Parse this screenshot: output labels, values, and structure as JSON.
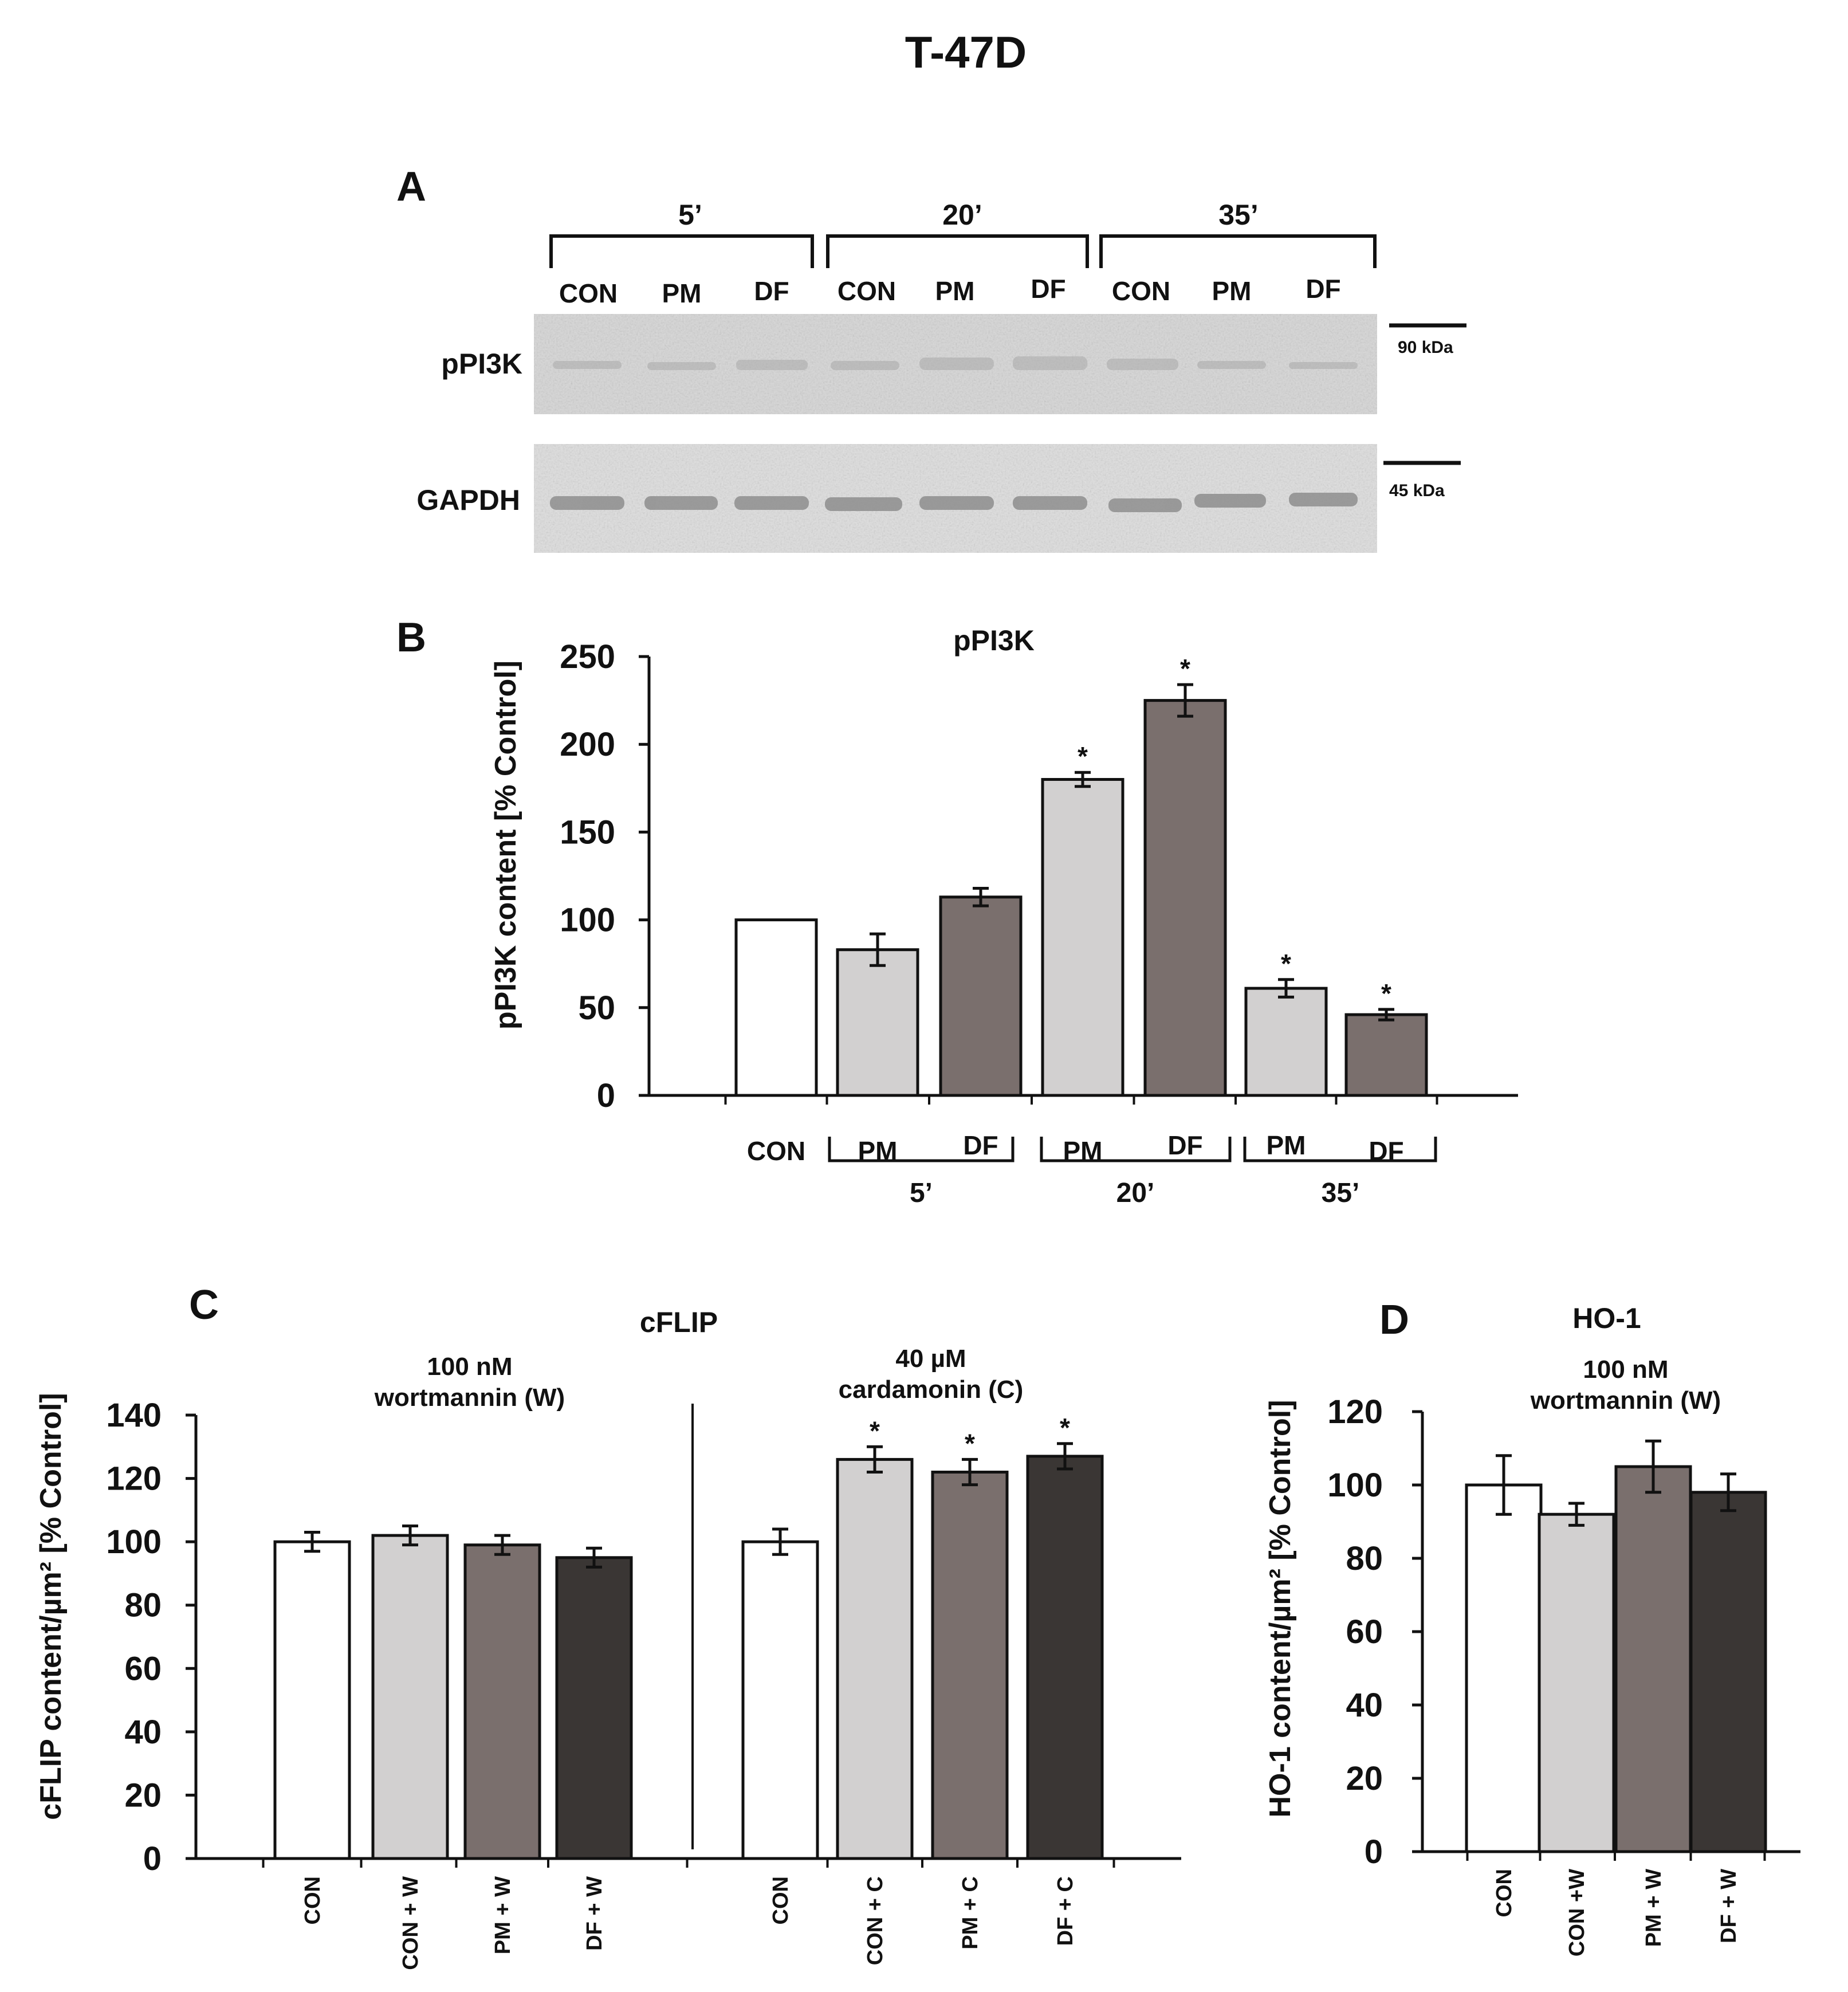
{
  "figure_title": "T-47D",
  "colors": {
    "con": "#ffffff",
    "pm": "#d2d0d0",
    "df": "#7a6f6d",
    "dark": "#3a3634",
    "outline": "#111111",
    "blot_bg": "#dcdcdc",
    "band": "#9c9c9c"
  },
  "panel_a": {
    "letter": "A",
    "time_groups": [
      {
        "label": "5’",
        "lanes": [
          "CON",
          "PM",
          "DF"
        ]
      },
      {
        "label": "20’",
        "lanes": [
          "CON",
          "PM",
          "DF"
        ]
      },
      {
        "label": "35’",
        "lanes": [
          "CON",
          "PM",
          "DF"
        ]
      }
    ],
    "blots": [
      {
        "protein": "pPI3K",
        "marker": "90 kDa"
      },
      {
        "protein": "GAPDH",
        "marker": "45 kDa"
      }
    ]
  },
  "chart_data": [
    {
      "id": "B",
      "letter": "B",
      "type": "bar",
      "title": "pPI3K",
      "ylabel": "pPI3K content [% Control]",
      "ylim": [
        0,
        250
      ],
      "yticks": [
        "0",
        "50",
        "100",
        "150",
        "200",
        "250"
      ],
      "bars": [
        {
          "label": "CON",
          "value": 100,
          "error": 0,
          "color": "con",
          "sig": ""
        },
        {
          "label": "PM",
          "value": 83,
          "error": 9,
          "color": "pm",
          "sig": ""
        },
        {
          "label": "DF",
          "value": 113,
          "error": 5,
          "color": "df",
          "sig": ""
        },
        {
          "label": "PM",
          "value": 180,
          "error": 4,
          "color": "pm",
          "sig": "*"
        },
        {
          "label": "DF",
          "value": 225,
          "error": 9,
          "color": "df",
          "sig": "*"
        },
        {
          "label": "PM",
          "value": 61,
          "error": 5,
          "color": "pm",
          "sig": "*"
        },
        {
          "label": "DF",
          "value": 46,
          "error": 3,
          "color": "df",
          "sig": "*"
        }
      ],
      "groups": [
        "5’",
        "20’",
        "35’"
      ]
    },
    {
      "id": "C",
      "letter": "C",
      "type": "bar",
      "title": "cFLIP",
      "ylabel": "cFLIP content/µm²  [% Control]",
      "ylim": [
        0,
        140
      ],
      "yticks": [
        "0",
        "20",
        "40",
        "60",
        "80",
        "100",
        "120",
        "140"
      ],
      "section_labels": [
        {
          "line1": "100 nM",
          "line2": "wortmannin (W)"
        },
        {
          "line1": "40 µM",
          "line2": "cardamonin (C)"
        }
      ],
      "bars": [
        {
          "label": "CON",
          "value": 100,
          "error": 3,
          "color": "con",
          "sig": ""
        },
        {
          "label": "CON + W",
          "value": 102,
          "error": 3,
          "color": "pm",
          "sig": ""
        },
        {
          "label": "PM + W",
          "value": 99,
          "error": 3,
          "color": "df",
          "sig": ""
        },
        {
          "label": "DF + W",
          "value": 95,
          "error": 3,
          "color": "dark",
          "sig": ""
        },
        {
          "label": "CON",
          "value": 100,
          "error": 4,
          "color": "con",
          "sig": ""
        },
        {
          "label": "CON + C",
          "value": 126,
          "error": 4,
          "color": "pm",
          "sig": "*"
        },
        {
          "label": "PM + C",
          "value": 122,
          "error": 4,
          "color": "df",
          "sig": "*"
        },
        {
          "label": "DF + C",
          "value": 127,
          "error": 4,
          "color": "dark",
          "sig": "*"
        }
      ]
    },
    {
      "id": "D",
      "letter": "D",
      "type": "bar",
      "title": "HO-1",
      "ylabel": "HO-1 content/µm²  [% Control]",
      "ylim": [
        0,
        120
      ],
      "yticks": [
        "0",
        "20",
        "40",
        "60",
        "80",
        "100",
        "120"
      ],
      "section_labels": [
        {
          "line1": "100 nM",
          "line2": "wortmannin (W)"
        }
      ],
      "bars": [
        {
          "label": "CON",
          "value": 100,
          "error": 8,
          "color": "con",
          "sig": ""
        },
        {
          "label": "CON +W",
          "value": 92,
          "error": 3,
          "color": "pm",
          "sig": ""
        },
        {
          "label": "PM + W",
          "value": 105,
          "error": 7,
          "color": "df",
          "sig": ""
        },
        {
          "label": "DF + W",
          "value": 98,
          "error": 5,
          "color": "dark",
          "sig": ""
        }
      ]
    }
  ]
}
